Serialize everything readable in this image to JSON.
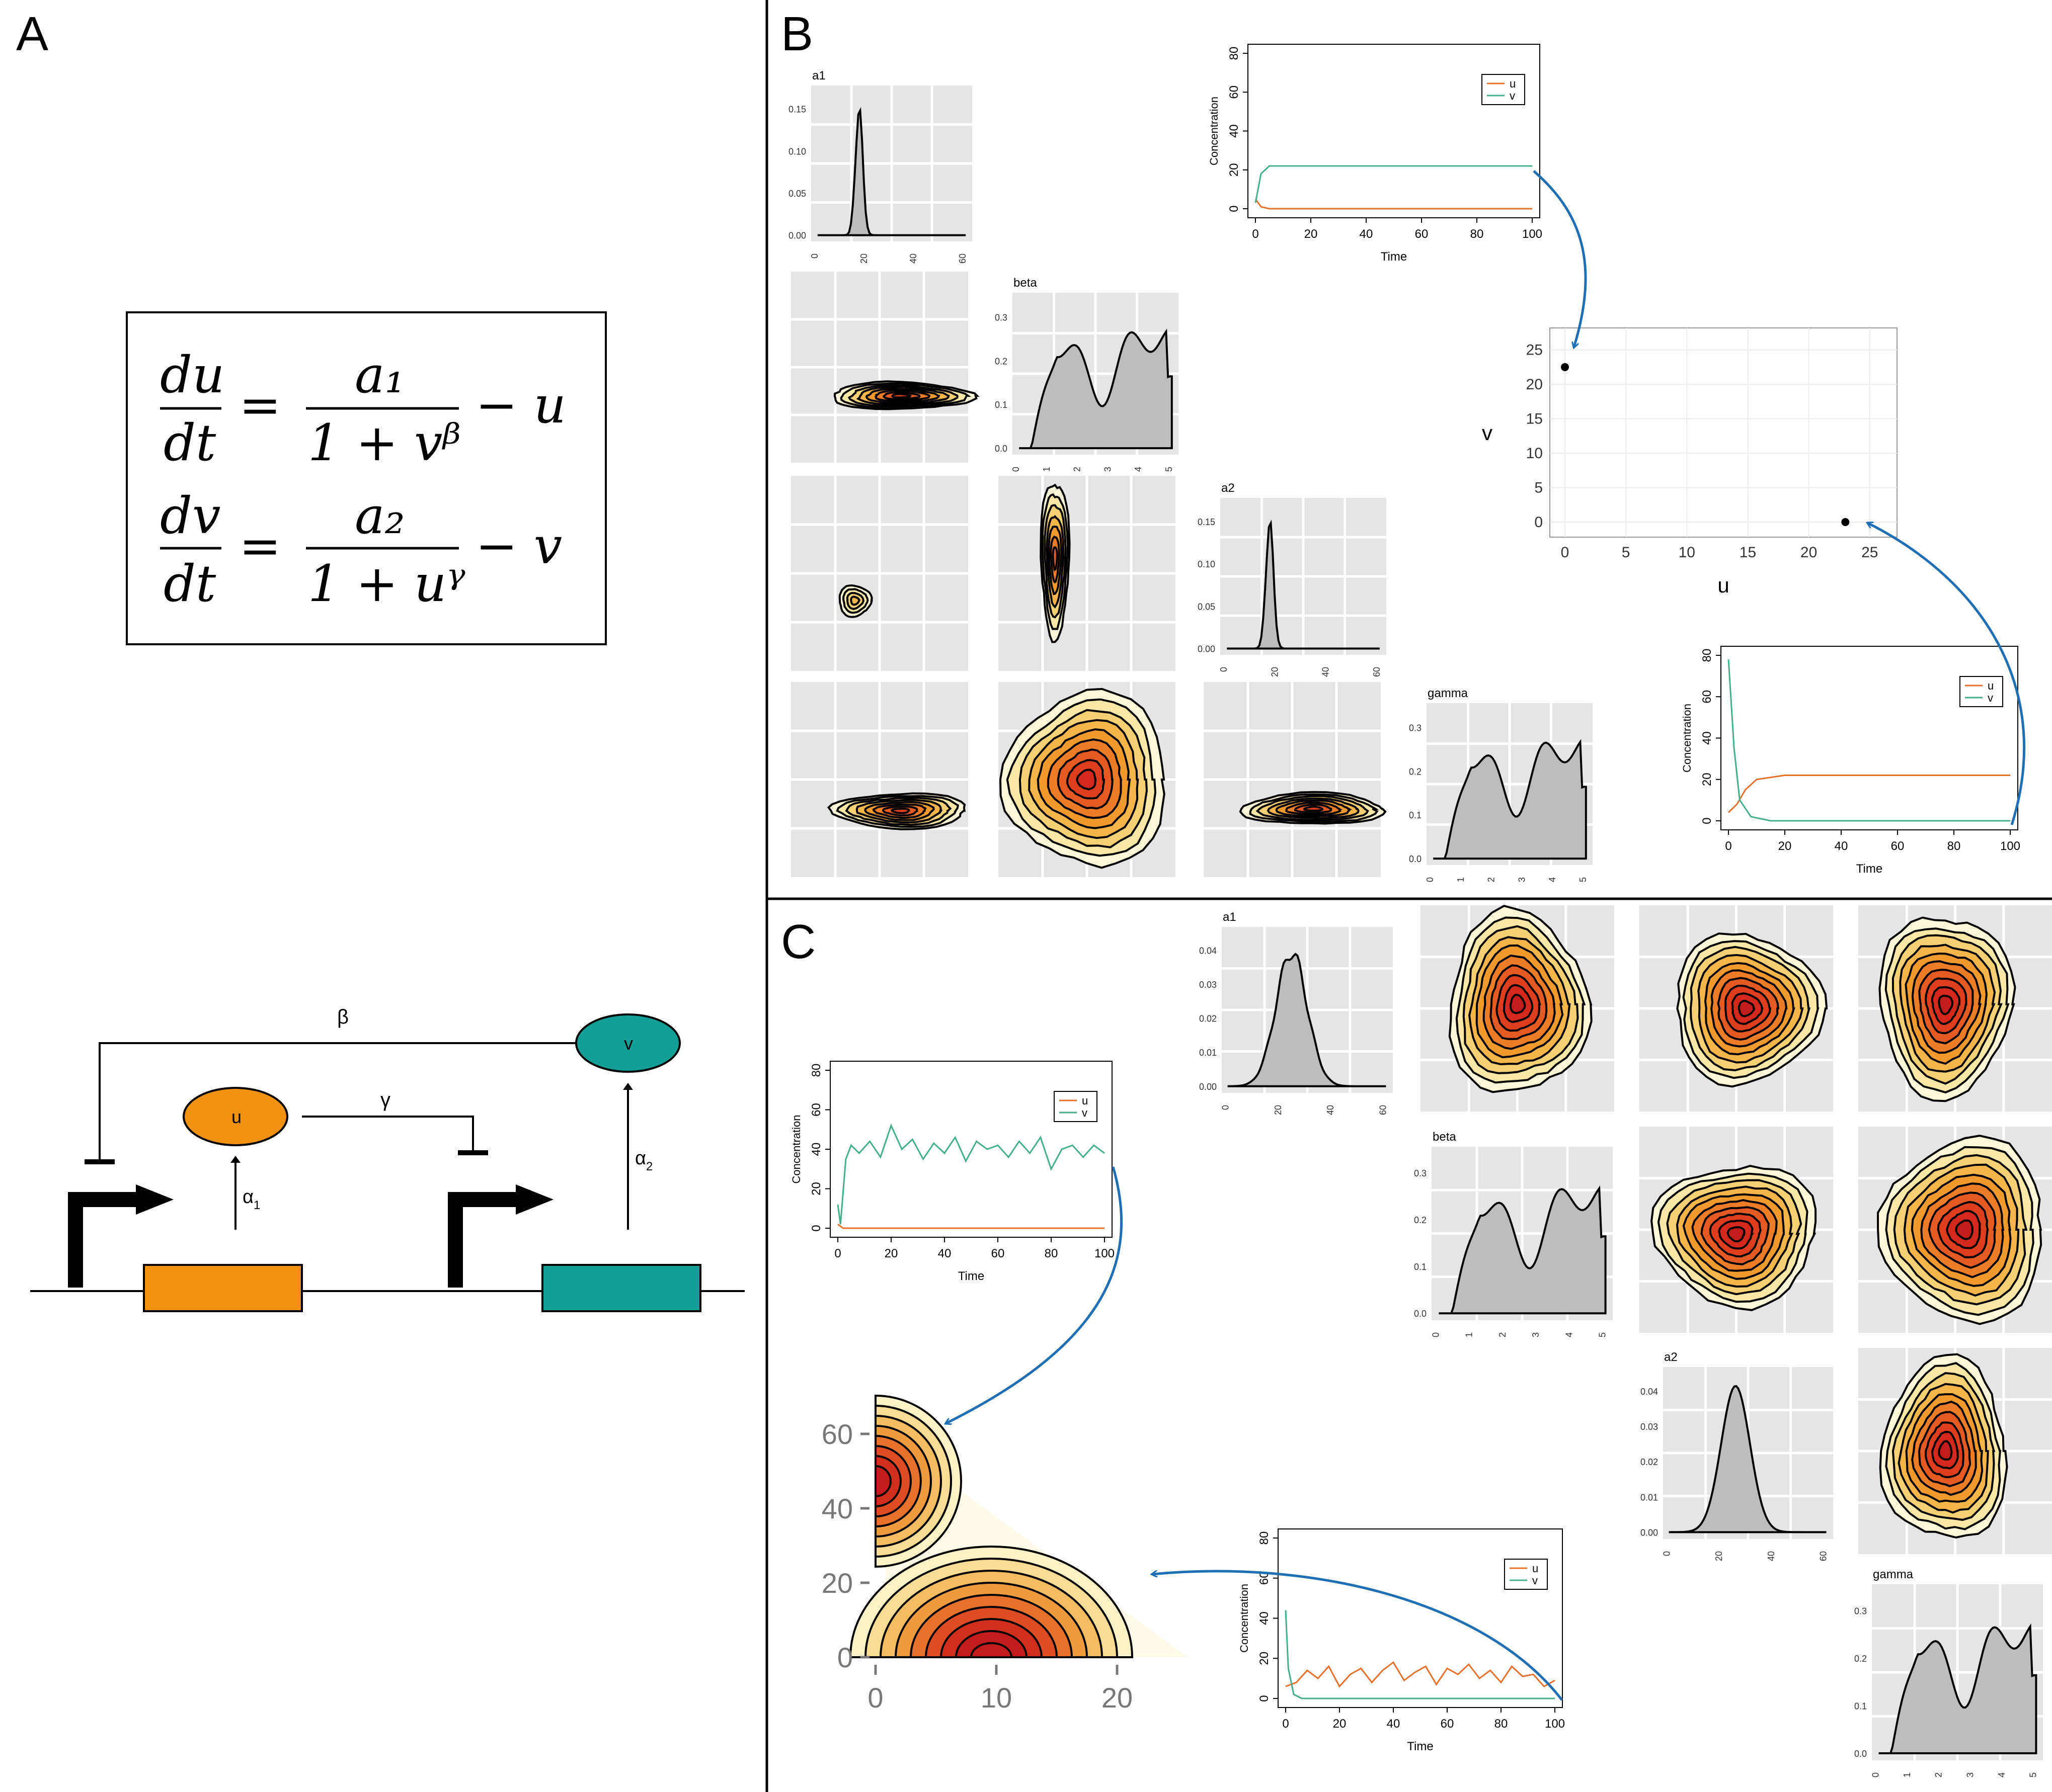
{
  "figure": {
    "panel_labels": [
      "A",
      "B",
      "C"
    ],
    "equations": {
      "du": "du",
      "dt": "dt",
      "a1": "a₁",
      "den1": "1 + vᵝ",
      "minus_u": "− u",
      "dv": "dv",
      "a2": "a₂",
      "den2": "1 + uᵞ",
      "minus_v": "− v",
      "equals": "="
    },
    "gene_circuit": {
      "node_u": "u",
      "node_v": "v",
      "beta": "β",
      "gamma": "γ",
      "alpha1": "α",
      "alpha1_sub": "1",
      "alpha2": "α",
      "alpha2_sub": "2",
      "colors": {
        "u": "#f0920f",
        "v": "#139e97"
      }
    },
    "panel_b": {
      "diag_titles": [
        "a1",
        "beta",
        "a2",
        "gamma"
      ],
      "phase_xlabel": "u",
      "phase_ylabel": "v",
      "phase_xticks": [
        "0",
        "5",
        "10",
        "15",
        "20",
        "25"
      ],
      "phase_yticks": [
        "0",
        "5",
        "10",
        "15",
        "20",
        "25"
      ]
    },
    "panel_c": {
      "diag_titles": [
        "a1",
        "beta",
        "a2",
        "gamma"
      ],
      "contour_xticks": [
        "0",
        "10",
        "20"
      ],
      "contour_yticks": [
        "0",
        "20",
        "40",
        "60"
      ]
    },
    "timeseries": {
      "xlabel": "Time",
      "ylabel": "Concentration",
      "legend": [
        "u",
        "v"
      ],
      "xticks": [
        "0",
        "20",
        "40",
        "60",
        "80",
        "100"
      ],
      "yticks": [
        "0",
        "20",
        "40",
        "60",
        "80"
      ],
      "colors": {
        "u": "#e8702a",
        "v": "#43b08a"
      }
    },
    "density_ticks": {
      "a_x": [
        "0",
        "20",
        "40",
        "60"
      ],
      "gamma_x": [
        "0",
        "1",
        "2",
        "3",
        "4",
        "5"
      ],
      "b_a1_y": [
        "0.00",
        "0.05",
        "0.10",
        "0.15"
      ],
      "b_beta_y": [
        "0.0",
        "0.1",
        "0.2",
        "0.3"
      ],
      "b_a2_y": [
        "0.00",
        "0.05",
        "0.10",
        "0.15"
      ],
      "b_gamma_y": [
        "0.0",
        "0.1",
        "0.2",
        "0.3"
      ],
      "c_a1_y": [
        "0.00",
        "0.01",
        "0.02",
        "0.03",
        "0.04"
      ],
      "c_beta_y": [
        "0.0",
        "0.1",
        "0.2",
        "0.3"
      ],
      "c_a2_y": [
        "0.00",
        "0.01",
        "0.02",
        "0.03",
        "0.04"
      ],
      "c_gamma_y": [
        "0.0",
        "0.1",
        "0.2",
        "0.3"
      ]
    },
    "arrow_color": "#1f6fb5"
  },
  "chart_data": [
    {
      "type": "line",
      "panel": "B-top",
      "xlabel": "Time",
      "ylabel": "Concentration",
      "xlim": [
        0,
        100
      ],
      "ylim": [
        0,
        80
      ],
      "series": [
        {
          "name": "u",
          "x": [
            0,
            2,
            5,
            10,
            100
          ],
          "values": [
            5,
            1,
            0,
            0,
            0
          ]
        },
        {
          "name": "v",
          "x": [
            0,
            2,
            5,
            10,
            100
          ],
          "values": [
            3,
            18,
            22,
            22,
            22
          ]
        }
      ]
    },
    {
      "type": "line",
      "panel": "B-bottom",
      "xlabel": "Time",
      "ylabel": "Concentration",
      "xlim": [
        0,
        100
      ],
      "ylim": [
        0,
        80
      ],
      "series": [
        {
          "name": "u",
          "x": [
            0,
            3,
            6,
            10,
            20,
            100
          ],
          "values": [
            4,
            8,
            15,
            20,
            22,
            22
          ]
        },
        {
          "name": "v",
          "x": [
            0,
            2,
            4,
            8,
            15,
            100
          ],
          "values": [
            78,
            35,
            10,
            2,
            0,
            0
          ]
        }
      ]
    },
    {
      "type": "scatter",
      "panel": "B-phase",
      "xlabel": "u",
      "ylabel": "v",
      "xlim": [
        0,
        26
      ],
      "ylim": [
        0,
        26
      ],
      "points": [
        [
          0,
          22.5
        ],
        [
          23,
          0
        ]
      ]
    },
    {
      "type": "line",
      "panel": "C-top",
      "xlabel": "Time",
      "ylabel": "Concentration",
      "xlim": [
        0,
        100
      ],
      "ylim": [
        0,
        80
      ],
      "series": [
        {
          "name": "u",
          "x": [
            0,
            2,
            100
          ],
          "values": [
            2,
            0,
            0
          ]
        },
        {
          "name": "v",
          "x": [
            0,
            1,
            3,
            5,
            8,
            12,
            16,
            20,
            24,
            28,
            32,
            36,
            40,
            44,
            48,
            52,
            56,
            60,
            64,
            68,
            72,
            76,
            80,
            84,
            88,
            92,
            96,
            100
          ],
          "values": [
            12,
            2,
            35,
            42,
            38,
            44,
            36,
            52,
            40,
            45,
            35,
            43,
            38,
            46,
            34,
            44,
            40,
            42,
            36,
            44,
            38,
            46,
            30,
            40,
            42,
            36,
            42,
            38
          ]
        }
      ]
    },
    {
      "type": "line",
      "panel": "C-bottom",
      "xlabel": "Time",
      "ylabel": "Concentration",
      "xlim": [
        0,
        100
      ],
      "ylim": [
        0,
        80
      ],
      "series": [
        {
          "name": "u",
          "x": [
            0,
            4,
            8,
            12,
            16,
            20,
            24,
            28,
            32,
            36,
            40,
            44,
            48,
            52,
            56,
            60,
            64,
            68,
            72,
            76,
            80,
            84,
            88,
            92,
            96,
            100
          ],
          "values": [
            6,
            8,
            14,
            10,
            16,
            6,
            12,
            15,
            8,
            14,
            18,
            9,
            13,
            16,
            7,
            15,
            12,
            17,
            10,
            14,
            8,
            16,
            11,
            12,
            6,
            9
          ]
        },
        {
          "name": "v",
          "x": [
            0,
            1,
            3,
            6,
            100
          ],
          "values": [
            44,
            15,
            2,
            0,
            0
          ]
        }
      ]
    },
    {
      "type": "heatmap",
      "panel": "C-contour",
      "xticks": [
        0,
        10,
        20
      ],
      "yticks": [
        0,
        20,
        40,
        60
      ]
    }
  ]
}
